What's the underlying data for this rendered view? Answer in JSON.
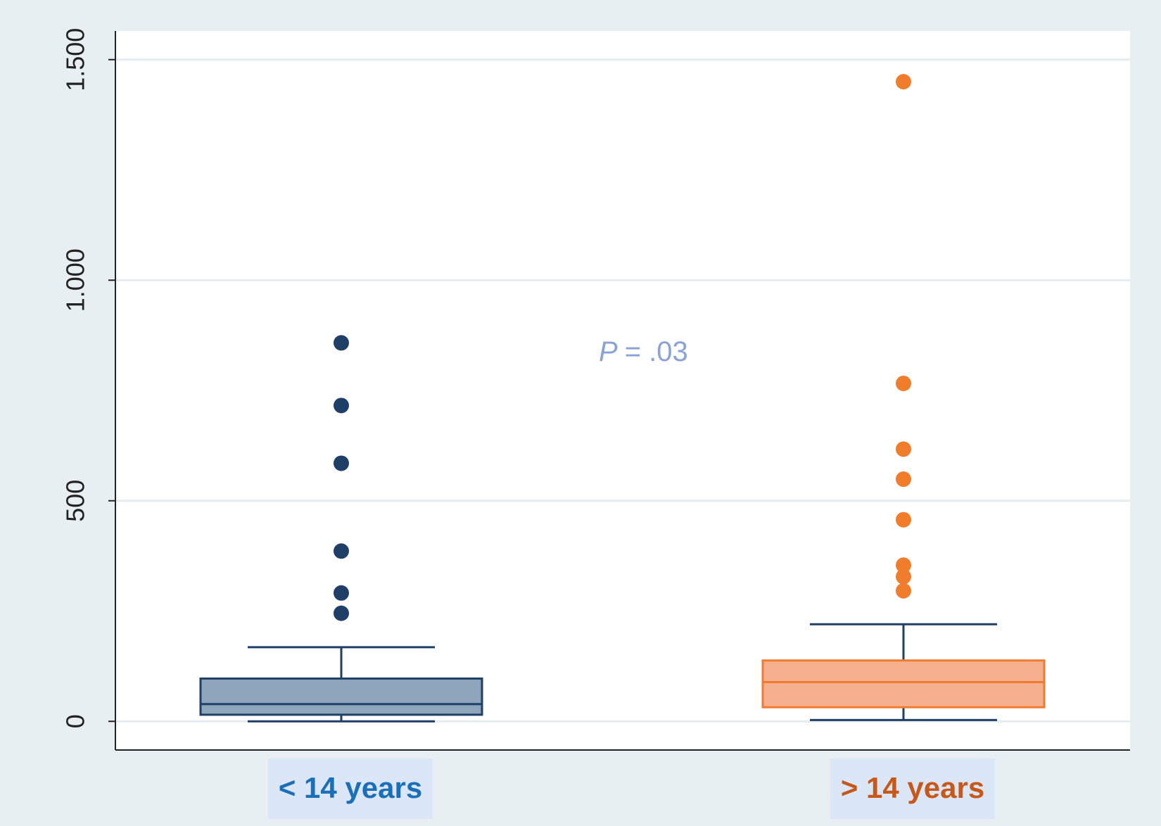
{
  "chart_data": {
    "type": "box",
    "categories": [
      "< 14 years",
      "> 14 years"
    ],
    "label_colors": [
      "#1a6fb8",
      "#c8581a"
    ],
    "annotation": [
      "P",
      "= .03"
    ],
    "ylim": [
      -65,
      1565
    ],
    "yticks": [
      0,
      500,
      {
        "value": 1000,
        "label": "1.000"
      },
      {
        "value": 1500,
        "label": "1.500"
      }
    ],
    "grid": true,
    "boxes": [
      {
        "whislo": 0,
        "q1": 15,
        "med": 39,
        "q3": 97,
        "whishi": 168,
        "fliers": [
          245,
          291,
          386,
          585,
          716,
          858
        ],
        "color": "#8fa5bb",
        "edgecolor": "#1f3f66",
        "whiskercolor": "#1f3f66",
        "fliercolor": "#1f3f66"
      },
      {
        "whislo": 3,
        "q1": 32,
        "med": 89,
        "q3": 138,
        "whishi": 220,
        "fliers": [
          296,
          328,
          354,
          457,
          549,
          617,
          766,
          1450
        ],
        "color": "#f5b08e",
        "edgecolor": "#f07a30",
        "whiskercolor": "#1f3f66",
        "fliercolor": "#f07d2c"
      }
    ]
  }
}
